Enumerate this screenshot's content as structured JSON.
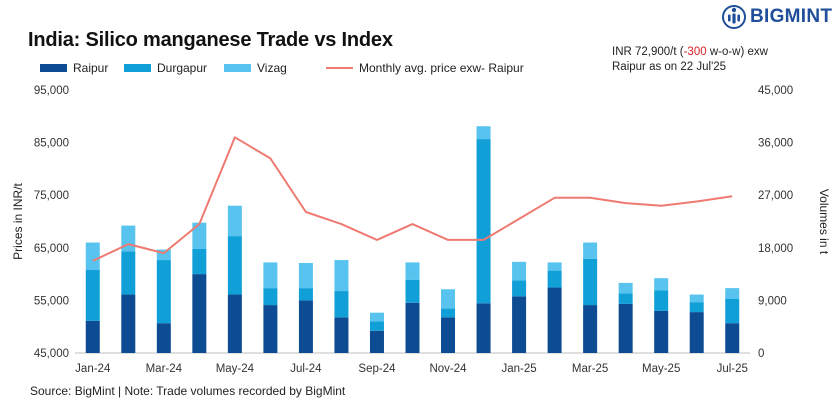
{
  "header": {
    "title": "India: Silico manganese Trade vs Index",
    "brand": "BIGMINT",
    "note_part1": "INR 72,900/t (",
    "note_change": "-300",
    "note_part2": " w-o-w) exw",
    "note_line2": "Raipur as on 22 Jul'25"
  },
  "footer": {
    "source": "Source: BigMint | Note: Trade volumes recorded by BigMint"
  },
  "colors": {
    "raipur": "#0d4c92",
    "durgapur": "#119fd8",
    "vizag": "#57c3ee",
    "price_line": "#ef7a72",
    "note_negative": "#d62020"
  },
  "chart_data": {
    "type": "bar",
    "stacked": true,
    "title": "India: Silico manganese Trade vs Index",
    "categories": [
      "Jan-24",
      "Feb-24",
      "Mar-24",
      "Apr-24",
      "May-24",
      "Jun-24",
      "Jul-24",
      "Aug-24",
      "Sep-24",
      "Oct-24",
      "Nov-24",
      "Dec-24",
      "Jan-25",
      "Feb-25",
      "Mar-25",
      "Apr-25",
      "May-25",
      "Jun-25",
      "Jul-25"
    ],
    "x_tick_labels": [
      "Jan-24",
      "Mar-24",
      "May-24",
      "Jul-24",
      "Sep-24",
      "Nov-24",
      "Jan-25",
      "Mar-25",
      "May-25",
      "Jul-25"
    ],
    "series": [
      {
        "name": "Raipur",
        "axis": "right",
        "kind": "bar",
        "values": [
          5500,
          10000,
          5100,
          13500,
          10000,
          8200,
          9000,
          6100,
          3800,
          8600,
          6100,
          8500,
          9700,
          11200,
          8200,
          8400,
          7200,
          7000,
          5100
        ]
      },
      {
        "name": "Durgapur",
        "axis": "right",
        "kind": "bar",
        "values": [
          8700,
          7400,
          10800,
          4300,
          10000,
          2900,
          2100,
          4500,
          1600,
          3900,
          1500,
          28100,
          2700,
          2900,
          7900,
          1800,
          3500,
          1700,
          4200
        ]
      },
      {
        "name": "Vizag",
        "axis": "right",
        "kind": "bar",
        "values": [
          4700,
          4400,
          1800,
          4500,
          5200,
          4400,
          4300,
          5300,
          1500,
          3000,
          3300,
          2200,
          3200,
          1400,
          2800,
          1800,
          2100,
          1300,
          1800
        ]
      },
      {
        "name": "Monthly avg. price exw- Raipur",
        "axis": "left",
        "kind": "line",
        "values": [
          62500,
          65700,
          64000,
          69500,
          86000,
          82000,
          71800,
          69500,
          66500,
          69500,
          66500,
          66500,
          70500,
          74500,
          74500,
          73500,
          73000,
          73800,
          74800
        ]
      }
    ],
    "y_left": {
      "label": "Prices in INR/t",
      "min": 45000,
      "max": 95000,
      "ticks": [
        45000,
        55000,
        65000,
        75000,
        85000,
        95000
      ],
      "tick_labels": [
        "45,000",
        "55,000",
        "65,000",
        "75,000",
        "85,000",
        "95,000"
      ]
    },
    "y_right": {
      "label": "Volumes in t",
      "min": 0,
      "max": 45000,
      "ticks": [
        0,
        9000,
        18000,
        27000,
        36000,
        45000
      ],
      "tick_labels": [
        "0",
        "9,000",
        "18,000",
        "27,000",
        "36,000",
        "45,000"
      ]
    },
    "legend_position": "top-left",
    "grid": false
  }
}
